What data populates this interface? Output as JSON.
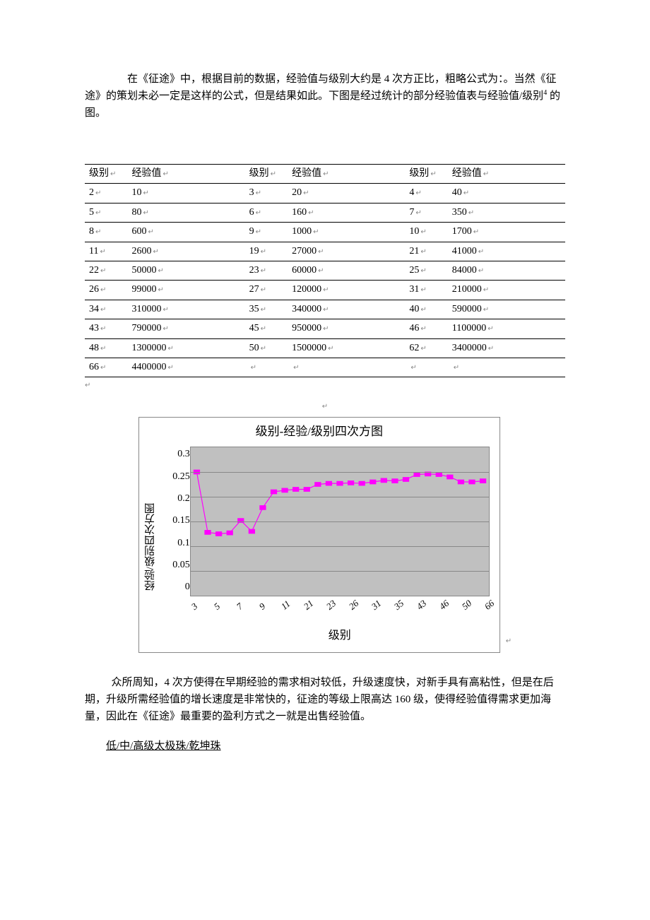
{
  "paragraph1": {
    "text_before_sup": "　　在《征途》中，根据目前的数据，经验值与级别大约是 4 次方正比，粗略公式为：。当然《征途》的策划未必一定是这样的公式，但是结果如此。下图是经过统计的部分经验值表与经验值/级别",
    "sup": "4",
    "text_after_sup": " 的图。"
  },
  "table": {
    "headers": [
      "级别",
      "经验值",
      "级别",
      "经验值",
      "级别",
      "经验值"
    ],
    "rows": [
      [
        "2",
        "10",
        "3",
        "20",
        "4",
        "40"
      ],
      [
        "5",
        "80",
        "6",
        "160",
        "7",
        "350"
      ],
      [
        "8",
        "600",
        "9",
        "1000",
        "10",
        "1700"
      ],
      [
        "11",
        "2600",
        "19",
        "27000",
        "21",
        "41000"
      ],
      [
        "22",
        "50000",
        "23",
        "60000",
        "25",
        "84000"
      ],
      [
        "26",
        "99000",
        "27",
        "120000",
        "31",
        "210000"
      ],
      [
        "34",
        "310000",
        "35",
        "340000",
        "40",
        "590000"
      ],
      [
        "43",
        "790000",
        "45",
        "950000",
        "46",
        "1100000"
      ],
      [
        "48",
        "1300000",
        "50",
        "1500000",
        "62",
        "3400000"
      ],
      [
        "66",
        "4400000",
        "",
        "",
        "",
        ""
      ]
    ],
    "col_widths_pct": [
      8,
      22,
      8,
      22,
      8,
      22
    ]
  },
  "chart": {
    "type": "line",
    "title": "级别-经验/级别四次方图",
    "ylabel": "经验/级别四次方图",
    "xlabel": "级别",
    "ylim": [
      0,
      0.3
    ],
    "yticks": [
      "0.3",
      "0.25",
      "0.2",
      "0.15",
      "0.1",
      "0.05",
      "0"
    ],
    "x_categories": [
      "3",
      "5",
      "7",
      "9",
      "11",
      "21",
      "23",
      "26",
      "31",
      "35",
      "43",
      "46",
      "50",
      "66"
    ],
    "x_all_ticks": [
      "3",
      "5",
      "7",
      "9",
      "11",
      "21",
      "23",
      "26",
      "31",
      "35",
      "43",
      "46",
      "50",
      "66"
    ],
    "series": [
      {
        "name": "exp_over_lvl4",
        "color": "#ff00ff",
        "marker": "square",
        "line_width": 2,
        "marker_size": 6,
        "values": [
          0.25,
          0.128,
          0.125,
          0.127,
          0.152,
          0.13,
          0.178,
          0.21,
          0.213,
          0.215,
          0.215,
          0.225,
          0.227,
          0.227,
          0.228,
          0.227,
          0.23,
          0.233,
          0.232,
          0.235,
          0.245,
          0.246,
          0.245,
          0.24,
          0.23,
          0.23,
          0.232
        ]
      }
    ],
    "background_color": "#c0c0c0",
    "grid_color": "#888888",
    "border_color": "#888888",
    "title_fontsize": 17,
    "label_fontsize": 15,
    "tick_fontsize": 13
  },
  "paragraph2": "　众所周知，4 次方使得在早期经验的需求相对较低，升级速度快，对新手具有高粘性，但是在后期，升级所需经验值的增长速度是非常快的，征途的等级上限高达 160 级，使得经验值得需求更加海量，因此在《征途》最重要的盈利方式之一就是出售经验值。",
  "subheading": "低/中/高级太极珠/乾坤珠"
}
